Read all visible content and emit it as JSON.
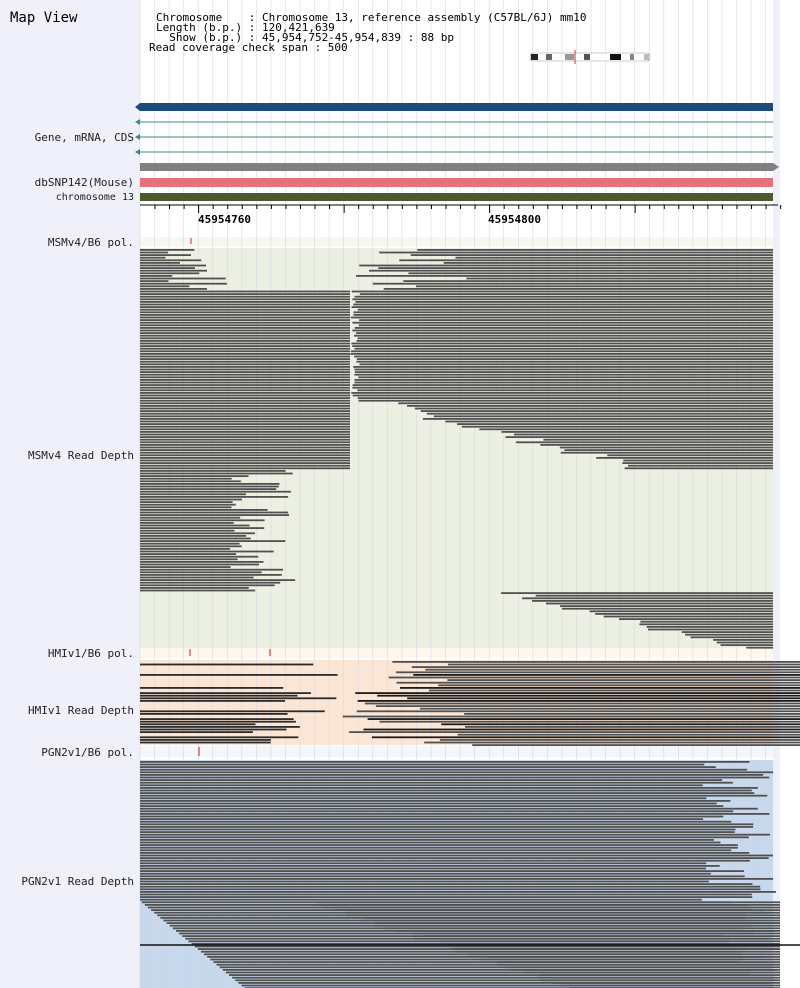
{
  "map_title": "Map View",
  "info": {
    "chromosome_line": "Chromosome    : Chromosome 13, reference assembly (C57BL/6J) mm10",
    "length_line": "Length (b.p.) : 120,421,639",
    "show_line": "  Show (b.p.) : 45,954,752-45,954,839 : 88 bp",
    "coverage_line": "Read coverage check span : 500"
  },
  "track_labels": {
    "gene": "Gene, mRNA, CDS",
    "dbsnp": "dbSNP142(Mouse)",
    "chromosome": "chromosome 13",
    "msm_pol": "MSMv4/B6 pol.",
    "msm_depth": "MSMv4 Read Depth",
    "hmi_pol": "HMIv1/B6 pol.",
    "hmi_depth": "HMIv1 Read Depth",
    "pgn_pol": "PGN2v1/B6 pol.",
    "pgn_depth": "PGN2v1 Read Depth"
  },
  "ruler": {
    "tick1_label": "45954760",
    "tick2_label": "45954800"
  },
  "colors": {
    "gene_bar": "#1f4a7c",
    "dbsnp_grey": "#808080",
    "dbsnp_pink": "#e8707a",
    "chromosome_bar": "#4a5a2a",
    "msm_bg": "#ecf0e2",
    "hmi_bg": "#fbe6d6",
    "pgn_bg": "#c8d8ec",
    "read_dark": "#505050",
    "snp_mark": "#cc2222"
  }
}
